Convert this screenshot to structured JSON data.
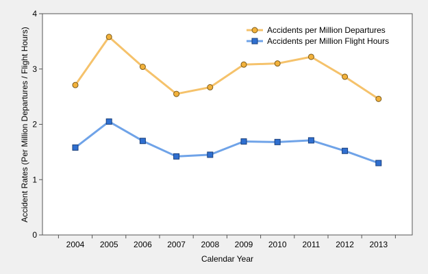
{
  "chart_data": {
    "type": "line",
    "title": "",
    "xlabel": "Calendar Year",
    "ylabel": "Accident Rates (Per Million Departures / Flight Hours)",
    "categories": [
      "2004",
      "2005",
      "2006",
      "2007",
      "2008",
      "2009",
      "2010",
      "2011",
      "2012",
      "2013"
    ],
    "ylim": [
      0,
      4
    ],
    "yticks": [
      0,
      1,
      2,
      3,
      4
    ],
    "grid": false,
    "legend_position": "top-right",
    "series": [
      {
        "name": "Accidents per Million Departures",
        "color": "#f5c26b",
        "marker_fill": "#f2b13b",
        "marker": "circle",
        "values": [
          2.71,
          3.58,
          3.04,
          2.55,
          2.67,
          3.08,
          3.1,
          3.22,
          2.86,
          2.46
        ]
      },
      {
        "name": "Accidents per Million Flight Hours",
        "color": "#6fa3e8",
        "marker_fill": "#2f6fd0",
        "marker": "square",
        "values": [
          1.58,
          2.05,
          1.7,
          1.42,
          1.45,
          1.69,
          1.68,
          1.71,
          1.52,
          1.3
        ]
      }
    ]
  }
}
